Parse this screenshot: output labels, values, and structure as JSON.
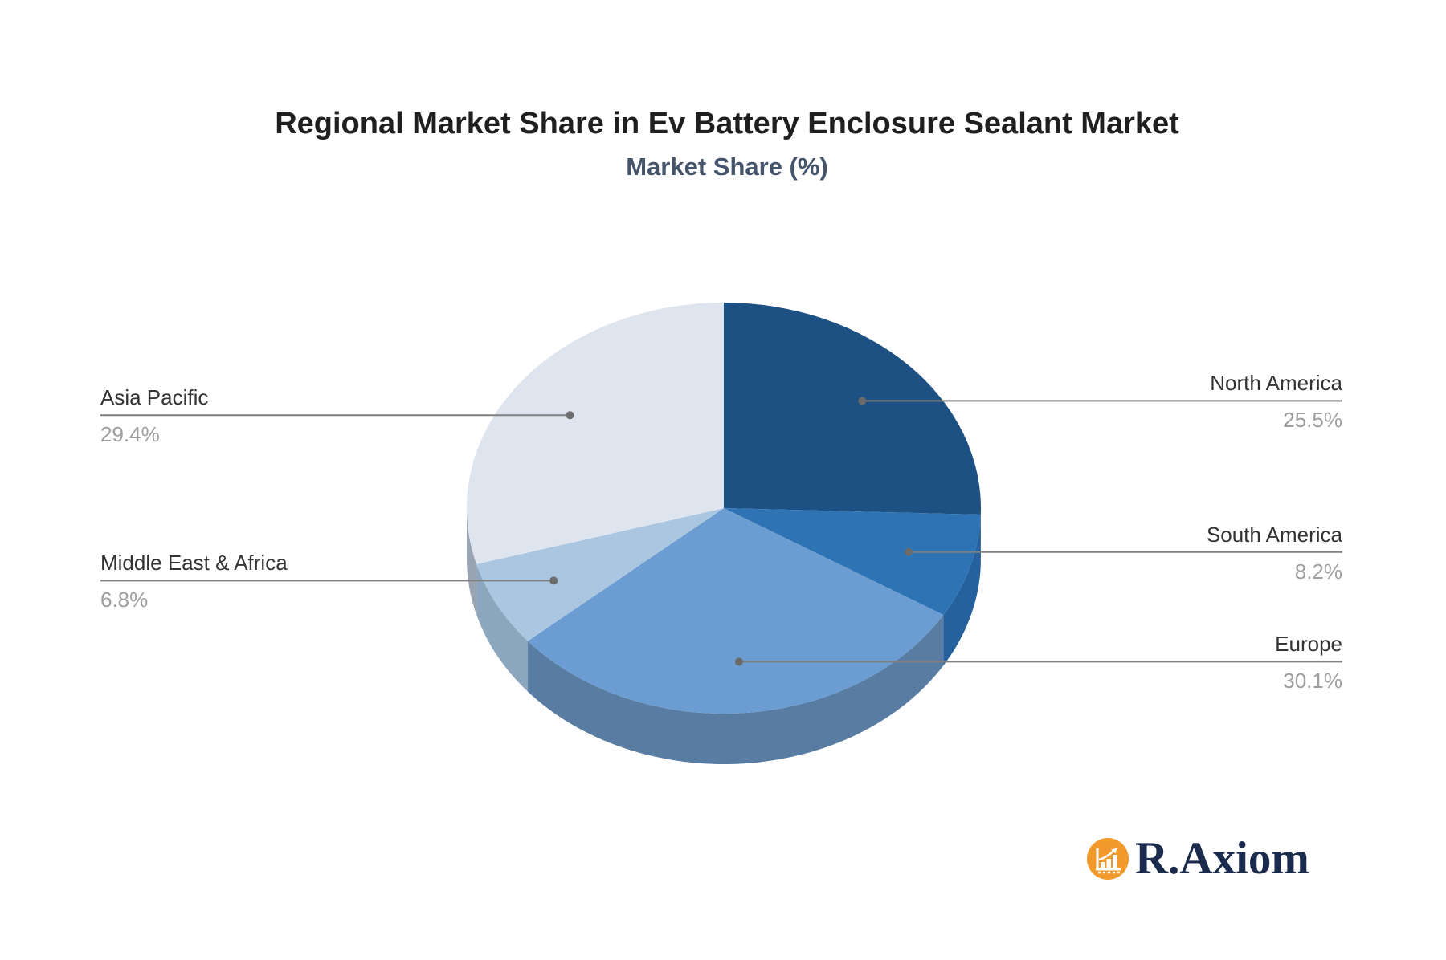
{
  "page": {
    "background": "#ffffff"
  },
  "header": {
    "title": "Regional Market Share in Ev Battery Enclosure Sealant Market",
    "subtitle": "Market Share (%)"
  },
  "chart_data": {
    "type": "pie",
    "style": "3d",
    "title": "Regional Market Share in Ev Battery Enclosure Sealant Market",
    "subtitle": "Market Share (%)",
    "unit": "%",
    "start_angle_deg": 0,
    "clockwise": true,
    "legend": "callout-lines",
    "categories": [
      "North America",
      "South America",
      "Europe",
      "Middle East & Africa",
      "Asia Pacific"
    ],
    "values": [
      25.5,
      8.2,
      30.1,
      6.8,
      29.4
    ],
    "slices": [
      {
        "label": "North America",
        "value": 25.5,
        "display": "25.5%",
        "color": "#1d5183",
        "side_color": "#1a4570",
        "callout_side": "right"
      },
      {
        "label": "South America",
        "value": 8.2,
        "display": "8.2%",
        "color": "#2e74b5",
        "side_color": "#25619c",
        "callout_side": "right"
      },
      {
        "label": "Europe",
        "value": 30.1,
        "display": "30.1%",
        "color": "#6b9dd2",
        "side_color": "#587ca2",
        "callout_side": "right"
      },
      {
        "label": "Middle East & Africa",
        "value": 6.8,
        "display": "6.8%",
        "color": "#aac6e1",
        "side_color": "#8ca6be",
        "callout_side": "left"
      },
      {
        "label": "Asia Pacific",
        "value": 29.4,
        "display": "29.4%",
        "color": "#dee5ef",
        "side_color": "#98a4b2",
        "callout_side": "left"
      }
    ],
    "callout_line_color": "#7f7f7f",
    "callout_dot_color": "#6b6b6b",
    "label_color": "#333333",
    "value_color": "#9e9e9e"
  },
  "brand": {
    "name": "R.Axiom",
    "icon": "bar-chart-growth-icon",
    "icon_bg": "#f2992b",
    "icon_fg": "#ffffff",
    "text_color": "#1b2b4d"
  }
}
